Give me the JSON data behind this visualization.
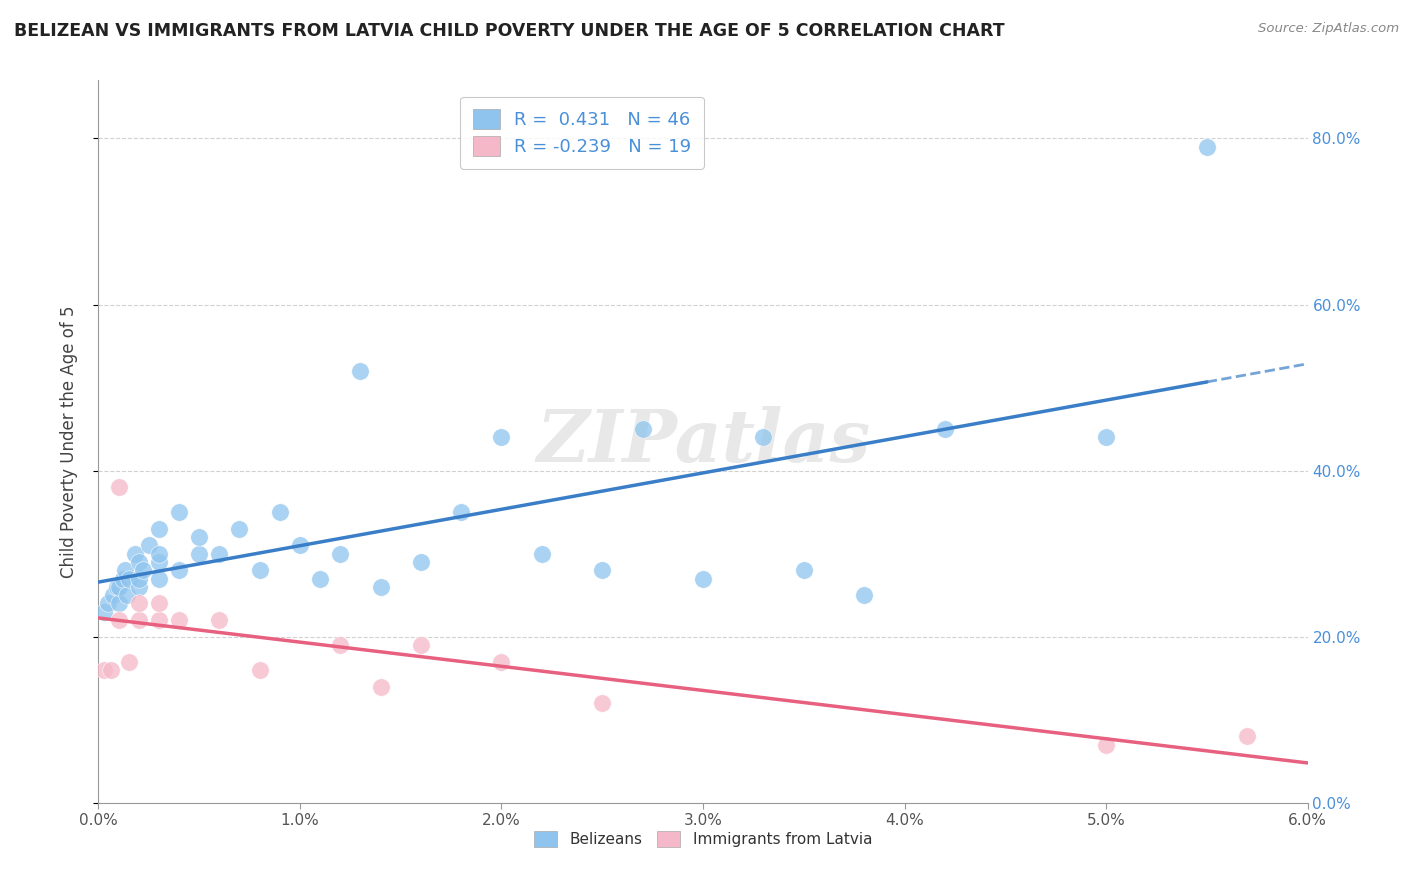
{
  "title": "BELIZEAN VS IMMIGRANTS FROM LATVIA CHILD POVERTY UNDER THE AGE OF 5 CORRELATION CHART",
  "source": "Source: ZipAtlas.com",
  "ylabel": "Child Poverty Under the Age of 5",
  "xlim": [
    0.0,
    0.06
  ],
  "ylim": [
    0.0,
    0.87
  ],
  "yticks": [
    0.0,
    0.2,
    0.4,
    0.6,
    0.8
  ],
  "ytick_labels": [
    "0.0%",
    "20.0%",
    "40.0%",
    "60.0%",
    "80.0%"
  ],
  "xticks": [
    0.0,
    0.01,
    0.02,
    0.03,
    0.04,
    0.05,
    0.06
  ],
  "xtick_labels": [
    "0.0%",
    "1.0%",
    "2.0%",
    "3.0%",
    "4.0%",
    "5.0%",
    "6.0%"
  ],
  "belizean_color": "#8EC4EE",
  "latvia_color": "#F5B8C8",
  "belizean_line_color": "#3A7EC8",
  "latvia_line_color": "#E86080",
  "belizean_R": 0.431,
  "belizean_N": 46,
  "latvia_R": -0.239,
  "latvia_N": 19,
  "legend_label_belizean": "Belizeans",
  "legend_label_latvia": "Immigrants from Latvia",
  "watermark_text": "ZIPatlas",
  "belizean_scatter_x": [
    0.0003,
    0.0005,
    0.0007,
    0.0009,
    0.001,
    0.001,
    0.0012,
    0.0013,
    0.0014,
    0.0015,
    0.0018,
    0.002,
    0.002,
    0.002,
    0.0022,
    0.0025,
    0.003,
    0.003,
    0.003,
    0.003,
    0.004,
    0.004,
    0.005,
    0.005,
    0.006,
    0.007,
    0.008,
    0.009,
    0.01,
    0.011,
    0.012,
    0.013,
    0.014,
    0.016,
    0.018,
    0.02,
    0.022,
    0.025,
    0.027,
    0.03,
    0.033,
    0.035,
    0.038,
    0.042,
    0.05,
    0.055
  ],
  "belizean_scatter_y": [
    0.23,
    0.24,
    0.25,
    0.26,
    0.24,
    0.26,
    0.27,
    0.28,
    0.25,
    0.27,
    0.3,
    0.26,
    0.27,
    0.29,
    0.28,
    0.31,
    0.27,
    0.29,
    0.3,
    0.33,
    0.28,
    0.35,
    0.3,
    0.32,
    0.3,
    0.33,
    0.28,
    0.35,
    0.31,
    0.27,
    0.3,
    0.52,
    0.26,
    0.29,
    0.35,
    0.44,
    0.3,
    0.28,
    0.45,
    0.27,
    0.44,
    0.28,
    0.25,
    0.45,
    0.44,
    0.79
  ],
  "latvia_scatter_x": [
    0.0003,
    0.0006,
    0.001,
    0.001,
    0.0015,
    0.002,
    0.002,
    0.003,
    0.003,
    0.004,
    0.006,
    0.008,
    0.012,
    0.014,
    0.016,
    0.02,
    0.025,
    0.05,
    0.057
  ],
  "latvia_scatter_y": [
    0.16,
    0.16,
    0.38,
    0.22,
    0.17,
    0.22,
    0.24,
    0.22,
    0.24,
    0.22,
    0.22,
    0.16,
    0.19,
    0.14,
    0.19,
    0.17,
    0.12,
    0.07,
    0.08
  ]
}
